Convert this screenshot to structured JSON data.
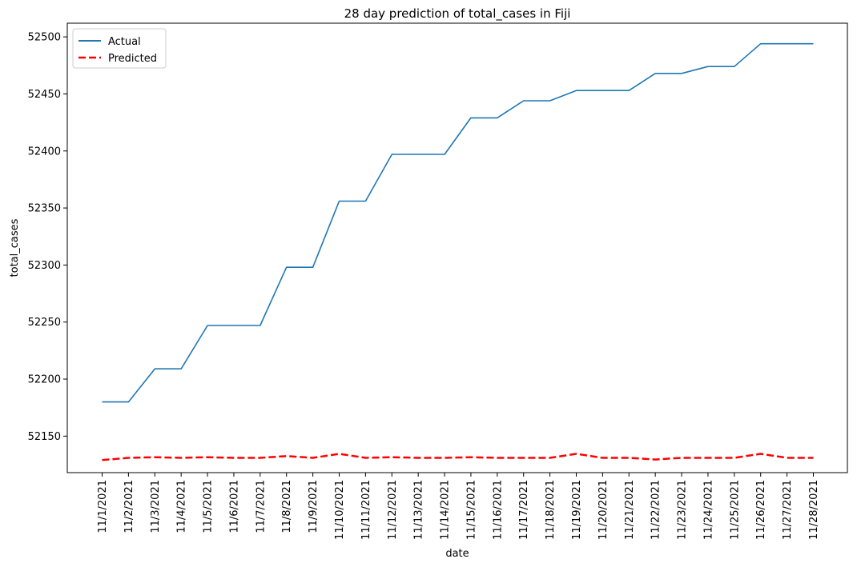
{
  "chart_data": {
    "type": "line",
    "title": "28 day prediction of total_cases in Fiji",
    "xlabel": "date",
    "ylabel": "total_cases",
    "categories": [
      "11/1/2021",
      "11/2/2021",
      "11/3/2021",
      "11/4/2021",
      "11/5/2021",
      "11/6/2021",
      "11/7/2021",
      "11/8/2021",
      "11/9/2021",
      "11/10/2021",
      "11/11/2021",
      "11/12/2021",
      "11/13/2021",
      "11/14/2021",
      "11/15/2021",
      "11/16/2021",
      "11/17/2021",
      "11/18/2021",
      "11/19/2021",
      "11/20/2021",
      "11/21/2021",
      "11/22/2021",
      "11/23/2021",
      "11/24/2021",
      "11/25/2021",
      "11/26/2021",
      "11/27/2021",
      "11/28/2021"
    ],
    "yticks": [
      52150,
      52200,
      52250,
      52300,
      52350,
      52400,
      52450,
      52500
    ],
    "ylim": [
      52118,
      52512
    ],
    "grid": false,
    "legend_position": "top-left",
    "series": [
      {
        "name": "Actual",
        "color": "#1f77b4",
        "style": "solid",
        "values": [
          52180,
          52180,
          52209,
          52209,
          52247,
          52247,
          52247,
          52298,
          52298,
          52356,
          52356,
          52397,
          52397,
          52397,
          52429,
          52429,
          52444,
          52444,
          52453,
          52453,
          52453,
          52468,
          52468,
          52474,
          52474,
          52494,
          52494,
          52494
        ]
      },
      {
        "name": "Predicted",
        "color": "#ff0000",
        "style": "dashed",
        "values": [
          52129,
          52131,
          52131.5,
          52131,
          52131.5,
          52131,
          52131,
          52132.5,
          52131,
          52134.5,
          52131,
          52131.5,
          52131,
          52131,
          52131.5,
          52131,
          52131,
          52131,
          52134.5,
          52131,
          52131,
          52129.5,
          52131,
          52131,
          52131,
          52134.5,
          52131,
          52131
        ]
      }
    ]
  }
}
